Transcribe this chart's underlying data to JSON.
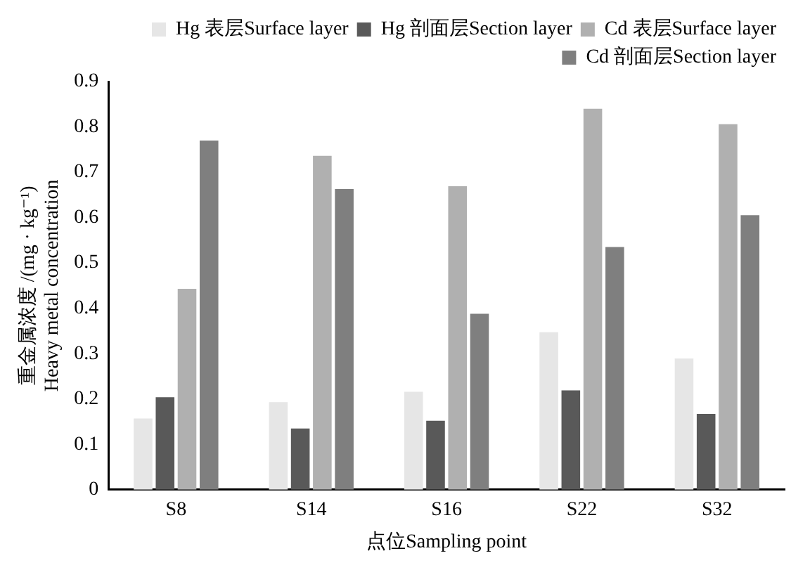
{
  "chart_data": {
    "type": "bar",
    "xlabel": "点位Sampling point",
    "ylabel": "重金属浓度 /(mg · kg⁻¹)\nHeavy metal concentration",
    "categories": [
      "S8",
      "S14",
      "S16",
      "S22",
      "S32"
    ],
    "series": [
      {
        "name": "Hg 表层Surface layer",
        "color": "#e6e6e6",
        "values": [
          0.157,
          0.193,
          0.216,
          0.347,
          0.289
        ]
      },
      {
        "name": "Hg 剖面层Section layer",
        "color": "#595959",
        "values": [
          0.204,
          0.135,
          0.152,
          0.219,
          0.167
        ]
      },
      {
        "name": "Cd 表层Surface layer",
        "color": "#b0b0b0",
        "values": [
          0.443,
          0.736,
          0.669,
          0.84,
          0.806
        ]
      },
      {
        "name": "Cd 剖面层Section layer",
        "color": "#7f7f7f",
        "values": [
          0.77,
          0.663,
          0.388,
          0.535,
          0.605
        ]
      }
    ],
    "ylim": [
      0,
      0.9
    ],
    "yticks": [
      0,
      0.1,
      0.2,
      0.3,
      0.4,
      0.5,
      0.6,
      0.7,
      0.8,
      0.9
    ],
    "grid": false,
    "legend": "top"
  }
}
